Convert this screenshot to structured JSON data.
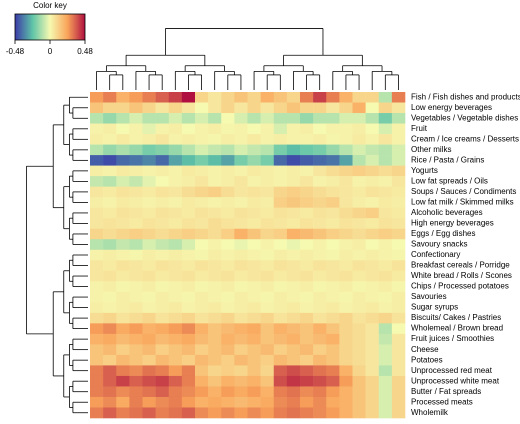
{
  "chart_data": {
    "type": "heatmap",
    "legend_title": "Color key",
    "zlim": [
      -0.48,
      0.48
    ],
    "zticks": [
      -0.48,
      0,
      0.48
    ],
    "rows": [
      "Fish / Fish dishes and products",
      "Low energy beverages",
      "Vegetables / Vegetable dishes",
      "Fruit",
      "Cream / Ice creams / Desserts",
      "Other milks",
      "Rice / Pasta / Grains",
      "Yogurts",
      "Low fat spreads / Oils",
      "Soups / Sauces / Condiments",
      "Low fat milk / Skimmed milks",
      "Alcoholic beverages",
      "High energy beverages",
      "Eggs / Egg dishes",
      "Savoury snacks",
      "Confectionary",
      "Breakfast cereals / Porridge",
      "White bread / Rolls / Scones",
      "Chips / Processed potatoes",
      "Savouries",
      "Sugar  syrups",
      "Biscuits/ Cakes / Pastries",
      "Wholemeal / Brown bread",
      "Fruit juices / Smoothies",
      "Cheese",
      "Potatoes",
      "Unprocessed red meat",
      "Unprocessed white meat",
      "Butter / Fat spreads",
      "Processed meats",
      "Wholemilk"
    ],
    "values": [
      [
        0.25,
        0.3,
        0.2,
        0.25,
        0.3,
        0.35,
        0.4,
        0.48,
        0.1,
        0.05,
        0.1,
        0.15,
        0.1,
        0.2,
        0.15,
        0.1,
        0.3,
        0.4,
        0.3,
        0.2,
        0.1,
        0.1,
        -0.1,
        0.3
      ],
      [
        0.15,
        0.1,
        0.1,
        0.15,
        0.1,
        0.05,
        0.1,
        0.05,
        0.0,
        0.05,
        0.1,
        0.05,
        0.1,
        0.05,
        0.1,
        0.15,
        0.1,
        0.1,
        0.05,
        0.1,
        0.2,
        0.0,
        0.1,
        0.05
      ],
      [
        -0.1,
        -0.15,
        -0.1,
        -0.05,
        -0.1,
        -0.1,
        -0.05,
        -0.1,
        -0.05,
        -0.1,
        0.0,
        -0.05,
        -0.1,
        -0.05,
        -0.1,
        -0.1,
        -0.15,
        -0.1,
        -0.1,
        -0.05,
        -0.05,
        -0.1,
        -0.2,
        -0.1
      ],
      [
        0.02,
        0.03,
        0.0,
        0.02,
        -0.03,
        0.02,
        0.03,
        0.0,
        0.02,
        0.03,
        0.01,
        0.02,
        0.0,
        0.02,
        -0.05,
        0.02,
        0.03,
        0.0,
        0.02,
        0.02,
        0.03,
        0.0,
        -0.05,
        0.02
      ],
      [
        0.03,
        0.02,
        0.04,
        0.02,
        0.03,
        0.05,
        0.02,
        0.03,
        0.02,
        0.01,
        0.03,
        0.02,
        0.04,
        0.02,
        0.03,
        0.02,
        0.02,
        0.03,
        0.01,
        0.02,
        0.04,
        0.02,
        0.05,
        0.02
      ],
      [
        -0.1,
        -0.15,
        -0.12,
        -0.15,
        -0.2,
        -0.18,
        -0.15,
        -0.1,
        -0.05,
        -0.08,
        -0.1,
        -0.05,
        -0.08,
        -0.1,
        -0.2,
        -0.25,
        -0.22,
        -0.2,
        -0.15,
        -0.1,
        -0.05,
        -0.08,
        -0.1,
        -0.05
      ],
      [
        -0.42,
        -0.45,
        -0.4,
        -0.38,
        -0.35,
        -0.4,
        -0.3,
        -0.25,
        -0.2,
        -0.25,
        -0.3,
        -0.2,
        -0.15,
        -0.2,
        -0.4,
        -0.45,
        -0.42,
        -0.4,
        -0.38,
        -0.3,
        -0.1,
        -0.05,
        -0.1,
        -0.05
      ],
      [
        0.03,
        0.02,
        0.04,
        0.03,
        0.02,
        0.03,
        0.02,
        0.04,
        0.03,
        0.02,
        0.03,
        0.02,
        0.04,
        0.03,
        0.02,
        0.03,
        0.02,
        0.05,
        0.08,
        0.1,
        0.12,
        0.1,
        0.08,
        0.1
      ],
      [
        -0.08,
        -0.1,
        -0.05,
        -0.08,
        -0.03,
        0.0,
        0.02,
        0.03,
        0.05,
        0.02,
        0.03,
        0.05,
        0.02,
        0.03,
        0.02,
        0.03,
        0.05,
        0.02,
        0.03,
        0.05,
        0.02,
        0.03,
        0.02,
        0.05
      ],
      [
        0.05,
        0.04,
        0.06,
        0.05,
        0.04,
        0.06,
        0.05,
        0.08,
        0.1,
        0.12,
        0.08,
        0.05,
        0.06,
        0.05,
        0.1,
        0.12,
        0.1,
        0.08,
        0.06,
        0.05,
        0.04,
        0.06,
        0.05,
        0.04
      ],
      [
        0.03,
        0.02,
        0.04,
        0.03,
        0.02,
        0.03,
        0.02,
        0.04,
        0.03,
        0.02,
        0.03,
        0.02,
        0.04,
        0.03,
        0.12,
        0.14,
        0.12,
        0.1,
        0.12,
        0.05,
        0.03,
        0.02,
        0.04,
        0.03
      ],
      [
        0.05,
        0.04,
        0.06,
        0.05,
        0.04,
        0.06,
        0.05,
        0.04,
        0.06,
        0.05,
        0.04,
        0.06,
        0.05,
        0.04,
        0.06,
        0.05,
        0.04,
        0.06,
        0.05,
        0.08,
        0.1,
        0.12,
        0.05,
        0.04
      ],
      [
        0.05,
        0.06,
        0.05,
        0.04,
        0.06,
        0.05,
        0.04,
        0.06,
        0.05,
        0.08,
        0.06,
        0.05,
        0.04,
        0.06,
        0.05,
        0.04,
        0.06,
        0.05,
        0.04,
        0.06,
        0.05,
        0.04,
        0.06,
        0.05
      ],
      [
        0.1,
        0.08,
        0.1,
        0.12,
        0.1,
        0.08,
        0.1,
        0.12,
        0.1,
        0.08,
        0.12,
        0.2,
        0.15,
        0.1,
        0.12,
        0.2,
        0.18,
        0.15,
        0.12,
        0.1,
        0.08,
        0.1,
        0.12,
        0.1
      ],
      [
        -0.1,
        -0.12,
        -0.08,
        -0.1,
        -0.05,
        -0.08,
        -0.1,
        -0.05,
        0.0,
        0.02,
        0.0,
        -0.02,
        0.0,
        0.02,
        0.0,
        -0.02,
        0.0,
        0.02,
        0.0,
        0.02,
        0.03,
        0.0,
        0.02,
        0.0
      ],
      [
        0.02,
        0.03,
        0.02,
        0.01,
        0.03,
        0.02,
        0.03,
        0.02,
        0.01,
        0.03,
        0.02,
        0.03,
        0.02,
        0.01,
        0.03,
        0.02,
        0.03,
        0.02,
        0.01,
        0.03,
        0.02,
        0.03,
        0.02,
        0.01
      ],
      [
        0.05,
        0.04,
        0.06,
        0.05,
        0.04,
        0.06,
        0.05,
        0.04,
        0.06,
        0.05,
        0.04,
        0.06,
        0.05,
        0.04,
        0.06,
        0.05,
        0.04,
        0.06,
        0.05,
        0.04,
        0.06,
        0.05,
        0.04,
        0.06
      ],
      [
        0.05,
        0.06,
        0.04,
        0.05,
        0.06,
        0.04,
        0.05,
        0.06,
        0.04,
        0.05,
        0.06,
        0.04,
        0.05,
        0.06,
        0.04,
        0.05,
        0.06,
        0.04,
        0.05,
        0.06,
        0.04,
        0.05,
        0.06,
        0.04
      ],
      [
        0.02,
        0.03,
        0.01,
        0.02,
        0.03,
        0.01,
        0.02,
        0.03,
        0.01,
        0.02,
        0.03,
        0.01,
        0.02,
        0.03,
        0.01,
        0.02,
        0.03,
        0.01,
        0.02,
        0.03,
        0.01,
        0.02,
        0.03,
        0.01
      ],
      [
        0.02,
        0.01,
        0.03,
        0.02,
        0.01,
        0.03,
        0.02,
        0.01,
        0.03,
        0.02,
        0.01,
        0.03,
        0.02,
        0.01,
        0.03,
        0.02,
        0.01,
        0.03,
        0.02,
        0.01,
        0.03,
        0.02,
        0.01,
        0.03
      ],
      [
        0.03,
        0.02,
        0.03,
        0.04,
        0.02,
        0.03,
        0.04,
        0.02,
        0.03,
        0.04,
        0.02,
        0.03,
        0.04,
        0.02,
        0.03,
        0.04,
        0.02,
        0.03,
        0.04,
        0.02,
        0.03,
        0.04,
        0.02,
        0.03
      ],
      [
        0.08,
        0.1,
        0.06,
        0.08,
        0.1,
        0.06,
        0.08,
        0.1,
        0.06,
        0.08,
        0.1,
        0.06,
        0.08,
        0.1,
        0.06,
        0.08,
        0.1,
        0.06,
        0.08,
        0.1,
        0.06,
        0.08,
        0.1,
        0.06
      ],
      [
        0.25,
        0.28,
        0.22,
        0.25,
        0.2,
        0.22,
        0.25,
        0.28,
        0.2,
        0.15,
        0.18,
        0.2,
        0.22,
        0.15,
        0.2,
        0.18,
        0.15,
        0.2,
        0.15,
        0.1,
        0.08,
        0.05,
        -0.1,
        0.0
      ],
      [
        0.2,
        0.22,
        0.18,
        0.2,
        0.22,
        0.18,
        0.2,
        0.22,
        0.18,
        0.15,
        0.2,
        0.18,
        0.2,
        0.15,
        0.18,
        0.2,
        0.15,
        0.18,
        0.2,
        0.1,
        0.08,
        0.05,
        -0.08,
        0.05
      ],
      [
        0.15,
        0.18,
        0.12,
        0.15,
        0.18,
        0.12,
        0.15,
        0.18,
        0.12,
        0.15,
        0.18,
        0.12,
        0.15,
        0.18,
        0.12,
        0.15,
        0.18,
        0.12,
        0.15,
        0.1,
        0.08,
        0.05,
        -0.05,
        0.05
      ],
      [
        0.15,
        0.12,
        0.18,
        0.15,
        0.12,
        0.18,
        0.15,
        0.12,
        0.18,
        0.15,
        0.12,
        0.18,
        0.15,
        0.12,
        0.18,
        0.15,
        0.12,
        0.18,
        0.15,
        0.1,
        0.08,
        0.05,
        -0.05,
        0.05
      ],
      [
        0.3,
        0.35,
        0.3,
        0.28,
        0.32,
        0.3,
        0.25,
        0.3,
        0.15,
        0.1,
        0.12,
        0.1,
        0.15,
        0.1,
        0.35,
        0.38,
        0.35,
        0.32,
        0.3,
        0.2,
        0.1,
        0.05,
        -0.1,
        0.05
      ],
      [
        0.3,
        0.35,
        0.4,
        0.35,
        0.38,
        0.4,
        0.35,
        0.3,
        0.2,
        0.15,
        0.2,
        0.18,
        0.2,
        0.15,
        0.38,
        0.42,
        0.4,
        0.38,
        0.35,
        0.25,
        0.15,
        0.1,
        -0.05,
        0.1
      ],
      [
        0.3,
        0.32,
        0.28,
        0.3,
        0.32,
        0.35,
        0.3,
        0.28,
        0.25,
        0.2,
        0.25,
        0.22,
        0.25,
        0.2,
        0.3,
        0.32,
        0.28,
        0.3,
        0.25,
        0.2,
        0.15,
        0.1,
        -0.05,
        0.1
      ],
      [
        0.25,
        0.28,
        0.22,
        0.3,
        0.25,
        0.28,
        0.3,
        0.25,
        0.2,
        0.22,
        0.2,
        0.18,
        0.2,
        0.22,
        0.28,
        0.3,
        0.25,
        0.28,
        0.22,
        0.2,
        0.15,
        0.1,
        -0.05,
        0.1
      ],
      [
        0.3,
        0.35,
        0.3,
        0.32,
        0.35,
        0.3,
        0.32,
        0.35,
        0.28,
        0.25,
        0.28,
        0.25,
        0.28,
        0.25,
        0.3,
        0.32,
        0.3,
        0.28,
        0.25,
        0.2,
        0.15,
        0.1,
        -0.05,
        0.1
      ]
    ]
  }
}
